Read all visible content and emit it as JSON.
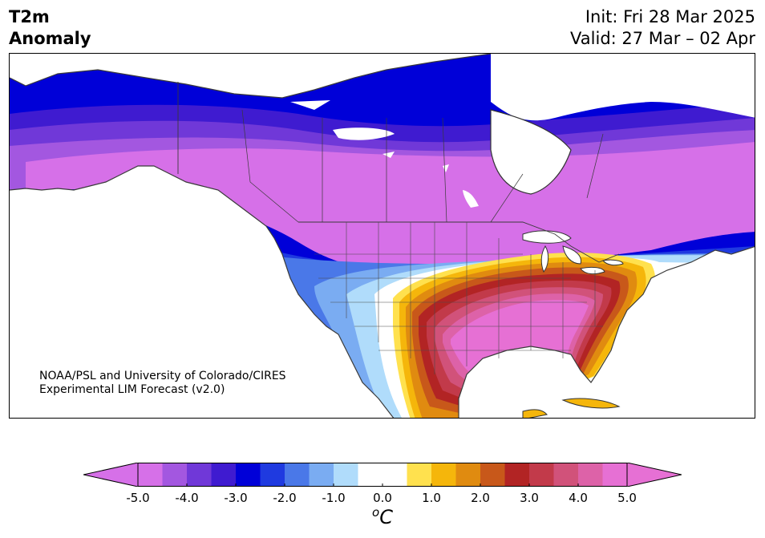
{
  "header": {
    "variable": "T2m",
    "field": "Anomaly",
    "init": "Init: Fri 28 Mar 2025",
    "valid": "Valid: 27 Mar – 02 Apr"
  },
  "credit": {
    "line1": "NOAA/PSL and University of Colorado/CIRES",
    "line2": "Experimental LIM Forecast (v2.0)"
  },
  "colorbar": {
    "unit_symbol": "o",
    "unit_letter": "C",
    "ticks": [
      "-5.0",
      "-4.0",
      "-3.0",
      "-2.0",
      "-1.0",
      "0.0",
      "1.0",
      "2.0",
      "3.0",
      "4.0",
      "5.0"
    ],
    "range": [
      -5.0,
      5.0
    ],
    "extend": "both",
    "colors": [
      "#d670e8",
      "#a357e0",
      "#7038d8",
      "#3f1bd0",
      "#0000d8",
      "#1f3ae0",
      "#4a78e8",
      "#7aacf2",
      "#b0dcfb",
      "#ffffff",
      "#ffffff",
      "#ffe14e",
      "#f5b60b",
      "#e08b10",
      "#c8581a",
      "#b22424",
      "#c23a4a",
      "#d1527a",
      "#dd62a8",
      "#e670d4"
    ],
    "under_color": "#d670e8",
    "over_color": "#e670d4"
  },
  "map_regions": {
    "region": "North America",
    "cold_core": "Canada (below -5.0)",
    "warm_core": "Southern and Eastern United States (above 5.0)"
  }
}
